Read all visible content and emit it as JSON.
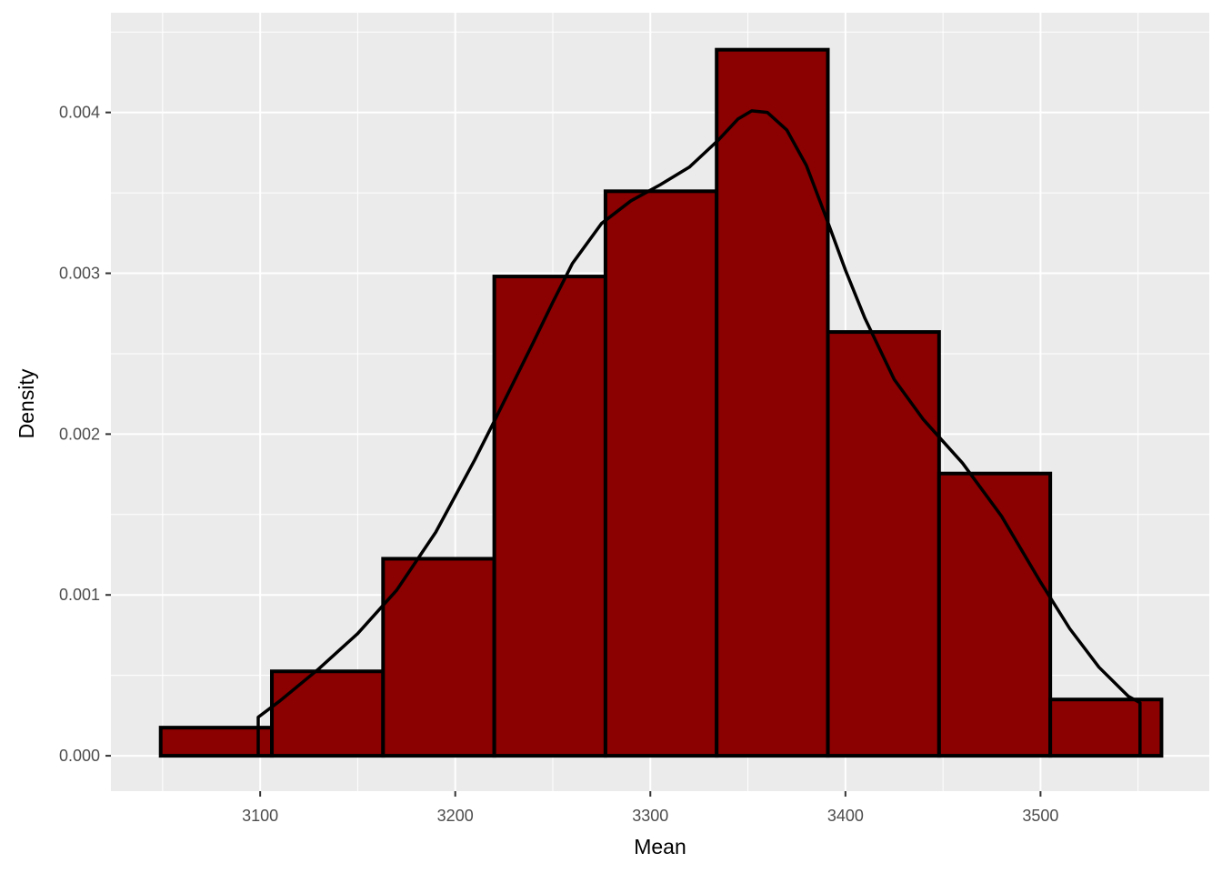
{
  "chart_data": {
    "type": "bar",
    "subtype": "histogram-with-density",
    "title": "",
    "xlabel": "Mean",
    "ylabel": "Density",
    "xlim": [
      3023.5,
      3586.5
    ],
    "ylim": [
      -0.00022,
      0.00462
    ],
    "x_ticks": [
      3100,
      3200,
      3300,
      3400,
      3500
    ],
    "x_tick_labels": [
      "3100",
      "3200",
      "3300",
      "3400",
      "3500"
    ],
    "y_ticks": [
      0,
      0.001,
      0.002,
      0.003,
      0.004
    ],
    "y_tick_labels": [
      "0.000",
      "0.001",
      "0.002",
      "0.003",
      "0.004"
    ],
    "grid": true,
    "colors": {
      "panel_background": "#EBEBEB",
      "grid": "#FFFFFF",
      "bar_fill": "#8B0000",
      "bar_outline": "#000000",
      "density_line": "#000000",
      "page_background": "#FFFFFF"
    },
    "bins": [
      {
        "x0": 3049,
        "x1": 3106,
        "density": 0.000175
      },
      {
        "x0": 3106,
        "x1": 3163,
        "density": 0.000525
      },
      {
        "x0": 3163,
        "x1": 3220,
        "density": 0.001225
      },
      {
        "x0": 3220,
        "x1": 3277,
        "density": 0.00298
      },
      {
        "x0": 3277,
        "x1": 3334,
        "density": 0.00351
      },
      {
        "x0": 3334,
        "x1": 3391,
        "density": 0.00439
      },
      {
        "x0": 3391,
        "x1": 3448,
        "density": 0.002635
      },
      {
        "x0": 3448,
        "x1": 3505,
        "density": 0.001755
      },
      {
        "x0": 3505,
        "x1": 3562,
        "density": 0.00035
      }
    ],
    "density_curve": {
      "x": [
        3099,
        3110,
        3130,
        3150,
        3170,
        3190,
        3210,
        3220,
        3240,
        3250,
        3260,
        3275,
        3290,
        3305,
        3320,
        3335,
        3345,
        3352,
        3360,
        3370,
        3380,
        3390,
        3400,
        3410,
        3425,
        3440,
        3460,
        3480,
        3500,
        3515,
        3530,
        3545,
        3551
      ],
      "y": [
        0.00024,
        0.00034,
        0.00054,
        0.00076,
        0.00103,
        0.00139,
        0.00184,
        0.00208,
        0.00257,
        0.00282,
        0.00306,
        0.00331,
        0.00345,
        0.00355,
        0.00366,
        0.00383,
        0.00396,
        0.00401,
        0.004,
        0.00389,
        0.00367,
        0.00335,
        0.00302,
        0.00272,
        0.00234,
        0.00209,
        0.00182,
        0.00149,
        0.00108,
        0.00079,
        0.00055,
        0.00037,
        0.00033
      ]
    },
    "density_start_marker_x": 3099,
    "density_end_marker_x": 3551
  }
}
